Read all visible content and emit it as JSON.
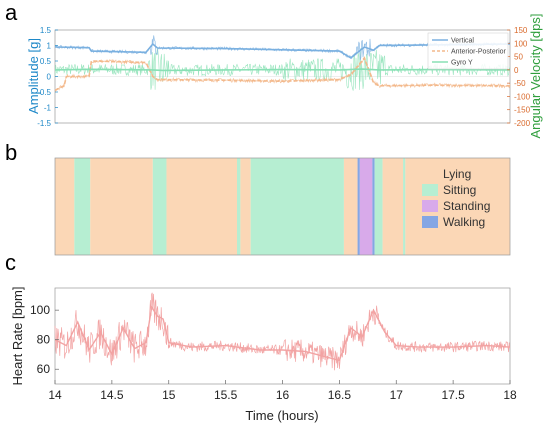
{
  "panel_letters": [
    "a",
    "b",
    "c"
  ],
  "colors": {
    "vertical": "#7ab0e0",
    "anterior_posterior": "#f3b98c",
    "gyro_y": "#88e0b4",
    "left_axis": "#1e88c8",
    "right_axis": "#d9692b",
    "right_label": "#2e9e3c",
    "lying": "#fbd7b6",
    "sitting": "#b6eed2",
    "standing": "#d8aaea",
    "walking": "#84a6e4",
    "heart_rate": "#f2a3a3"
  },
  "chart_data": [
    {
      "type": "line",
      "panel": "a",
      "ylabel": "Amplitude [g]",
      "y2label": "Angular Velocity [dps]",
      "xlim": [
        14,
        18
      ],
      "ylim": [
        -1.5,
        1.5
      ],
      "y2lim": [
        -200,
        150
      ],
      "yticks": [
        -1.5,
        -1,
        -0.5,
        0,
        0.5,
        1,
        1.5
      ],
      "yticklabels": [
        "-1.5",
        "-1",
        "-0.5",
        "0",
        "0.5",
        "1",
        "1.5"
      ],
      "y2ticks": [
        -200,
        -150,
        -100,
        -50,
        0,
        50,
        100,
        150
      ],
      "y2ticklabels": [
        "-200",
        "-150",
        "-100",
        "-50",
        "0",
        "50",
        "100",
        "150"
      ],
      "legend_position": "top-right",
      "series": [
        {
          "name": "Vertical",
          "axis": "left",
          "x": [
            14.0,
            14.3,
            14.32,
            14.8,
            14.86,
            14.9,
            15.5,
            16.0,
            16.5,
            16.6,
            16.72,
            16.8,
            16.85,
            17.3,
            18.0
          ],
          "values": [
            0.95,
            0.93,
            0.82,
            0.78,
            1.05,
            0.92,
            0.9,
            0.86,
            0.82,
            0.6,
            0.95,
            0.85,
            1.0,
            1.02,
            1.05
          ]
        },
        {
          "name": "Anterior-Posterior",
          "axis": "left",
          "x": [
            14.0,
            14.08,
            14.1,
            14.3,
            14.32,
            14.8,
            14.86,
            14.9,
            15.5,
            16.0,
            16.5,
            16.6,
            16.72,
            16.8,
            16.85,
            17.3,
            18.0
          ],
          "values": [
            -0.45,
            -0.3,
            0.0,
            0.0,
            0.5,
            0.45,
            0.0,
            -0.1,
            -0.12,
            -0.15,
            -0.1,
            0.05,
            0.6,
            -0.2,
            -0.3,
            -0.28,
            -0.3
          ]
        },
        {
          "name": "Gyro Y",
          "axis": "right",
          "x": [
            14.0,
            14.3,
            14.85,
            14.95,
            15.5,
            16.0,
            16.5,
            16.7,
            16.85,
            17.3,
            18.0
          ],
          "values": [
            0,
            2,
            0,
            -2,
            0,
            1,
            0,
            3,
            0,
            1,
            0
          ]
        }
      ]
    },
    {
      "type": "bar",
      "panel": "b",
      "xlim": [
        14,
        18
      ],
      "legend_position": "right",
      "categories": [
        "Lying",
        "Sitting",
        "Standing",
        "Walking"
      ],
      "segments": [
        {
          "start": 14.0,
          "end": 14.17,
          "label": "Lying"
        },
        {
          "start": 14.17,
          "end": 14.31,
          "label": "Sitting"
        },
        {
          "start": 14.31,
          "end": 14.86,
          "label": "Lying"
        },
        {
          "start": 14.86,
          "end": 14.98,
          "label": "Sitting"
        },
        {
          "start": 14.98,
          "end": 15.6,
          "label": "Lying"
        },
        {
          "start": 15.6,
          "end": 15.63,
          "label": "Sitting"
        },
        {
          "start": 15.63,
          "end": 15.72,
          "label": "Lying"
        },
        {
          "start": 15.72,
          "end": 16.54,
          "label": "Sitting"
        },
        {
          "start": 16.54,
          "end": 16.66,
          "label": "Lying"
        },
        {
          "start": 16.66,
          "end": 16.68,
          "label": "Walking"
        },
        {
          "start": 16.68,
          "end": 16.79,
          "label": "Standing"
        },
        {
          "start": 16.79,
          "end": 16.81,
          "label": "Walking"
        },
        {
          "start": 16.81,
          "end": 16.88,
          "label": "Sitting"
        },
        {
          "start": 16.88,
          "end": 17.06,
          "label": "Lying"
        },
        {
          "start": 17.06,
          "end": 17.08,
          "label": "Sitting"
        },
        {
          "start": 17.08,
          "end": 18.0,
          "label": "Lying"
        }
      ]
    },
    {
      "type": "line",
      "panel": "c",
      "xlabel": "Time (hours)",
      "ylabel": "Heart Rate [bpm]",
      "xlim": [
        14,
        18
      ],
      "ylim": [
        50,
        115
      ],
      "xticks": [
        14,
        14.5,
        15,
        15.5,
        16,
        16.5,
        17,
        17.5,
        18
      ],
      "xticklabels": [
        "14",
        "14.5",
        "15",
        "15.5",
        "16",
        "16.5",
        "17",
        "17.5",
        "18"
      ],
      "yticks": [
        60,
        80,
        100
      ],
      "yticklabels": [
        "60",
        "80",
        "100"
      ],
      "series": [
        {
          "name": "",
          "x": [
            14.0,
            14.1,
            14.2,
            14.3,
            14.4,
            14.5,
            14.6,
            14.7,
            14.8,
            14.85,
            14.9,
            14.95,
            15.0,
            15.2,
            15.5,
            15.8,
            16.0,
            16.2,
            16.5,
            16.6,
            16.7,
            16.8,
            16.9,
            17.0,
            17.2,
            17.5,
            17.8,
            18.0
          ],
          "values": [
            80,
            76,
            92,
            73,
            85,
            70,
            88,
            74,
            78,
            102,
            96,
            94,
            78,
            75,
            76,
            73,
            73,
            72,
            66,
            88,
            82,
            100,
            85,
            76,
            75,
            75,
            76,
            75
          ]
        }
      ]
    }
  ]
}
